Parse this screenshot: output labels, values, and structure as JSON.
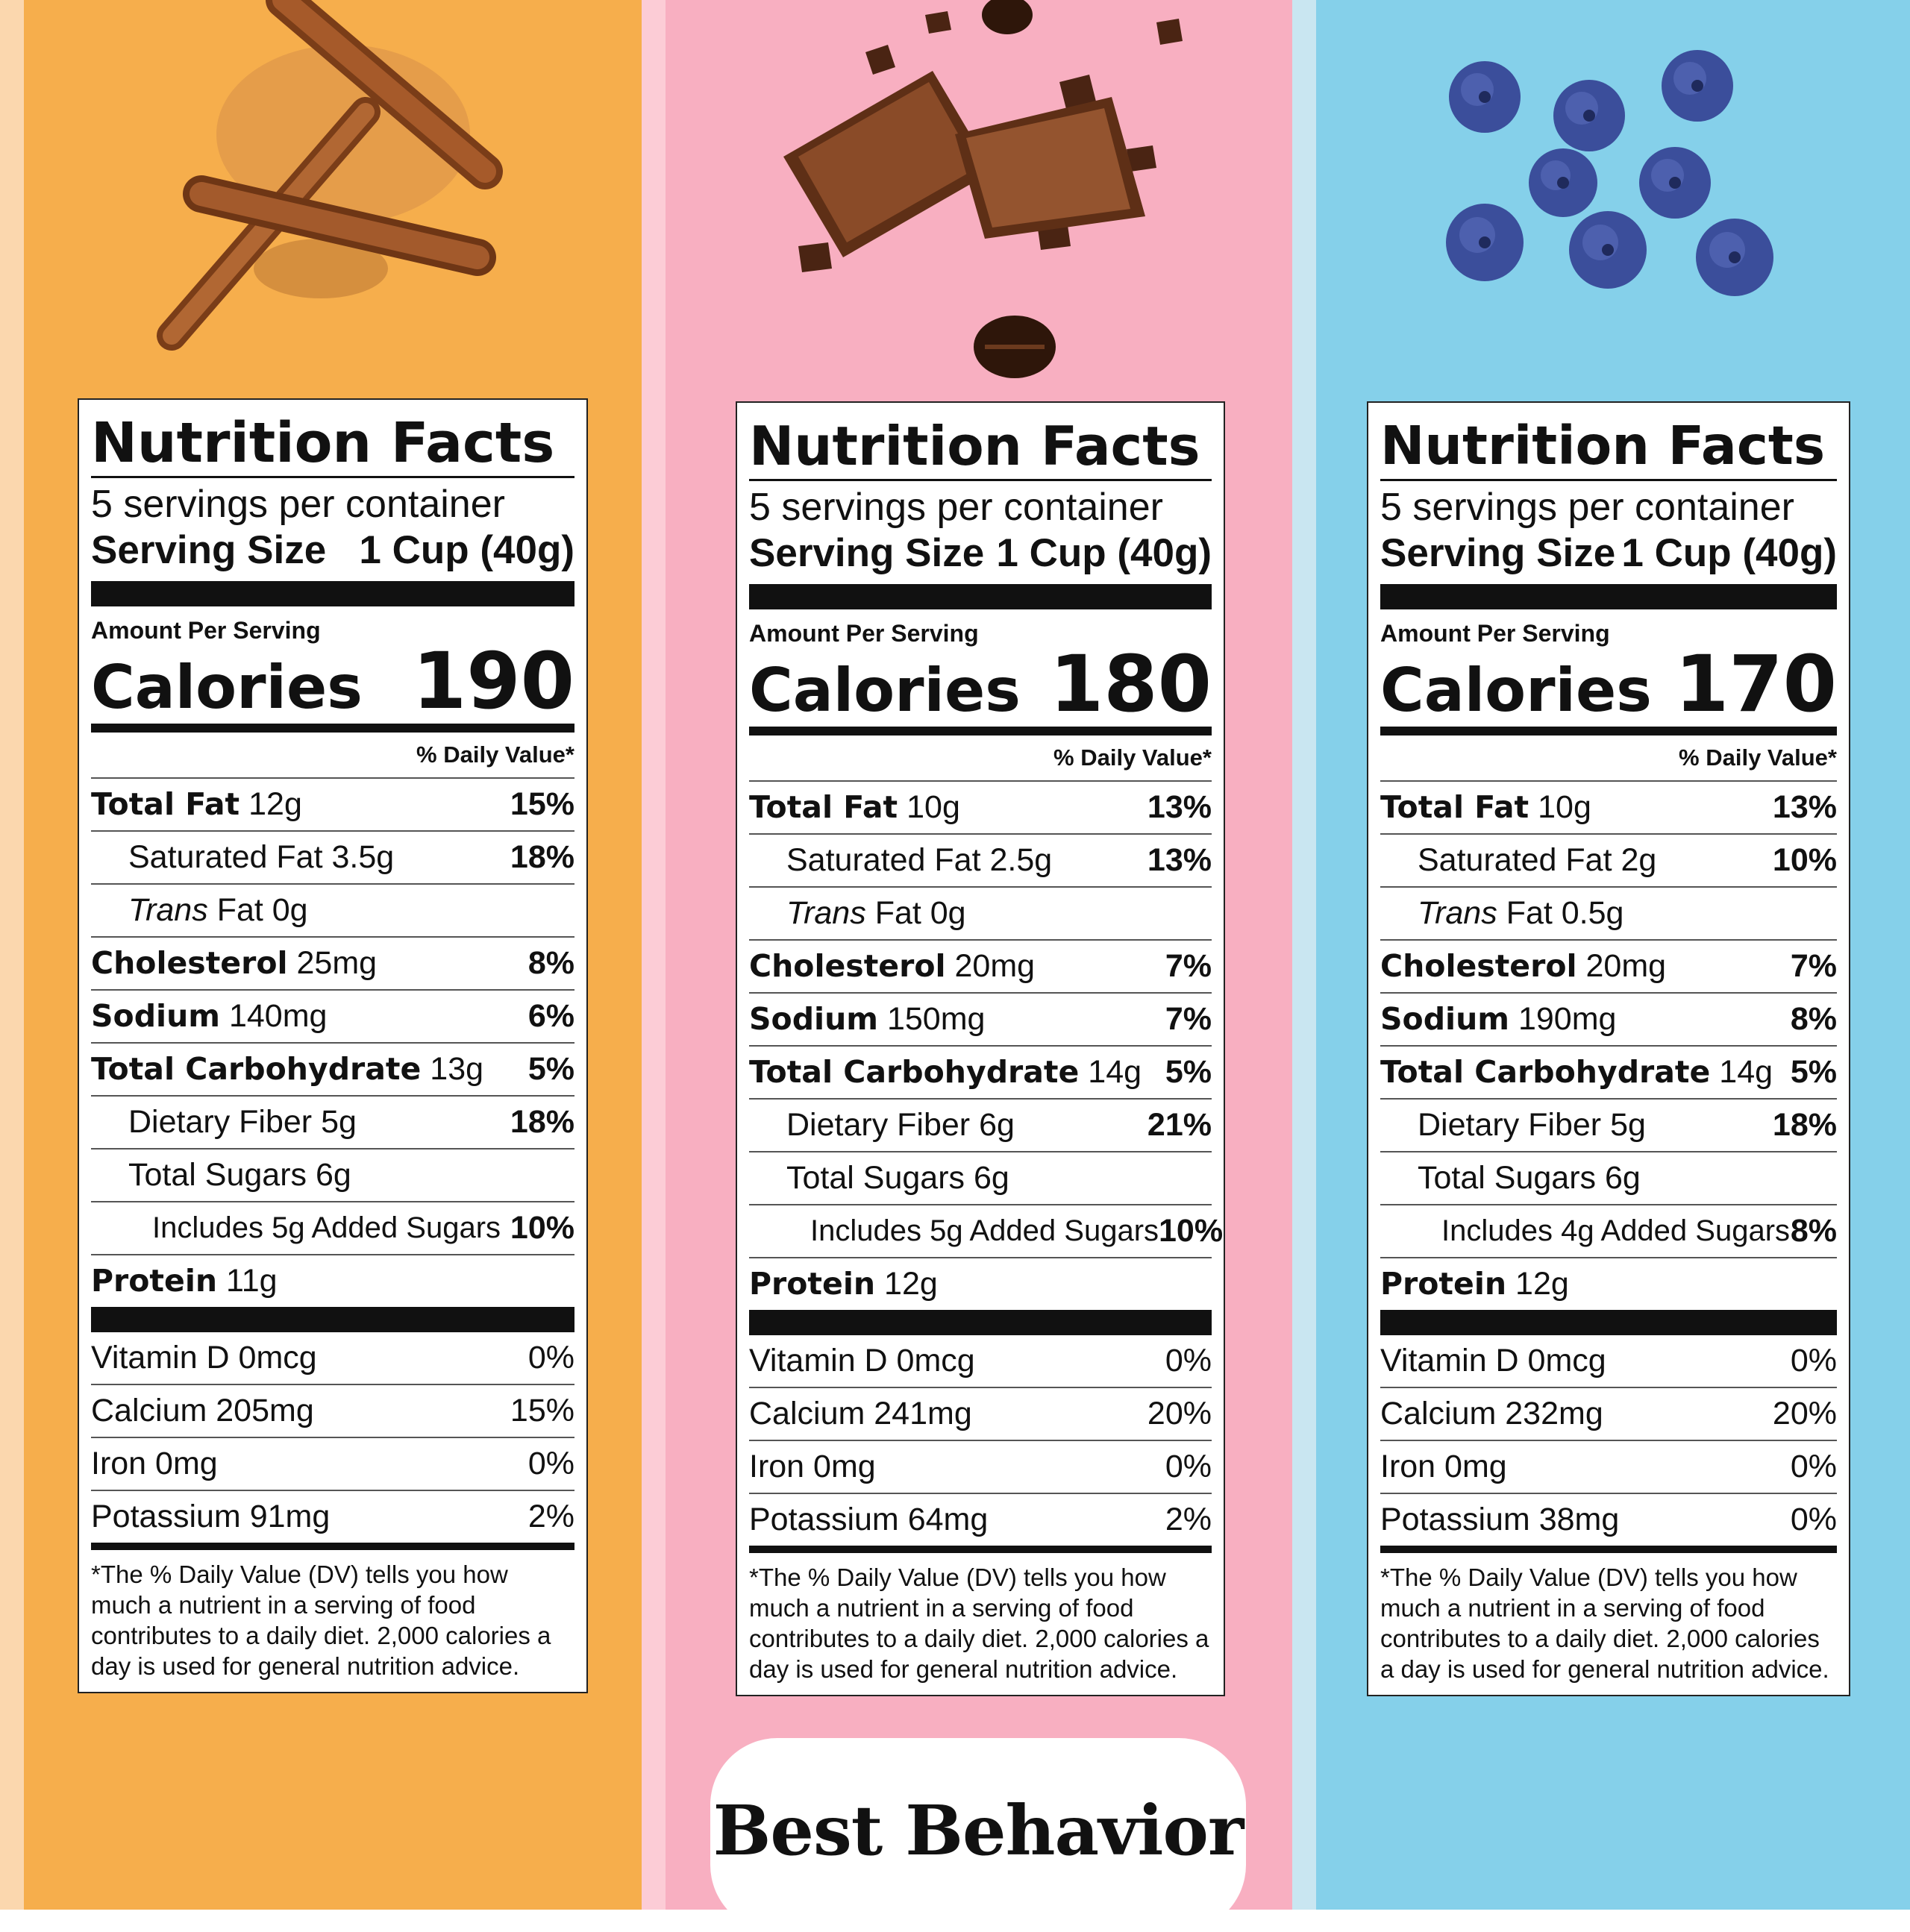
{
  "colors": {
    "orange": "#F6AE4C",
    "pink": "#F8AFC1",
    "blue": "#85D0EA",
    "peach_edge": "#FBD7AE",
    "pink_edge": "#FCCCD6",
    "blue_edge": "#C9E6F1"
  },
  "brand": {
    "name": "Best Behavior"
  },
  "labels": [
    {
      "title": "Nutrition Facts",
      "servings": "5 servings per container",
      "serving_size_label": "Serving Size",
      "serving_size_value": "1 Cup (40g)",
      "amount_per_serving": "Amount Per Serving",
      "calories_label": "Calories",
      "calories": "190",
      "dv_header": "% Daily Value*",
      "total_fat": {
        "label": "Total Fat",
        "amount": "12g",
        "pct": "15%"
      },
      "saturated_fat": {
        "label": "Saturated Fat 3.5g",
        "pct": "18%"
      },
      "trans_fat": {
        "italic": "Trans",
        "label": "Fat 0g"
      },
      "cholesterol": {
        "label": "Cholesterol",
        "amount": "25mg",
        "pct": "8%"
      },
      "sodium": {
        "label": "Sodium",
        "amount": "140mg",
        "pct": "6%"
      },
      "total_carb": {
        "label": "Total Carbohydrate",
        "amount": "13g",
        "pct": "5%"
      },
      "fiber": {
        "label": "Dietary Fiber 5g",
        "pct": "18%"
      },
      "sugars": {
        "label": "Total Sugars 6g"
      },
      "added_sugars": {
        "label": "Includes 5g Added Sugars",
        "pct": "10%"
      },
      "protein": {
        "label": "Protein",
        "amount": "11g"
      },
      "vitamins": [
        {
          "label": "Vitamin D 0mcg",
          "pct": "0%"
        },
        {
          "label": "Calcium 205mg",
          "pct": "15%"
        },
        {
          "label": "Iron 0mg",
          "pct": "0%"
        },
        {
          "label": "Potassium 91mg",
          "pct": "2%"
        }
      ],
      "footnote": "*The % Daily Value (DV) tells you how much a nutrient in a serving of food contributes to a daily diet. 2,000 calories a day is used for general nutrition advice."
    },
    {
      "title": "Nutrition Facts",
      "servings": "5 servings per container",
      "serving_size_label": "Serving Size",
      "serving_size_value": "1 Cup (40g)",
      "amount_per_serving": "Amount Per Serving",
      "calories_label": "Calories",
      "calories": "180",
      "dv_header": "% Daily Value*",
      "total_fat": {
        "label": "Total Fat",
        "amount": "10g",
        "pct": "13%"
      },
      "saturated_fat": {
        "label": "Saturated Fat 2.5g",
        "pct": "13%"
      },
      "trans_fat": {
        "italic": "Trans",
        "label": "Fat 0g"
      },
      "cholesterol": {
        "label": "Cholesterol",
        "amount": "20mg",
        "pct": "7%"
      },
      "sodium": {
        "label": "Sodium",
        "amount": "150mg",
        "pct": "7%"
      },
      "total_carb": {
        "label": "Total Carbohydrate",
        "amount": "14g",
        "pct": "5%"
      },
      "fiber": {
        "label": "Dietary Fiber 6g",
        "pct": "21%"
      },
      "sugars": {
        "label": "Total Sugars 6g"
      },
      "added_sugars": {
        "label": "Includes 5g Added Sugars",
        "pct": "10%"
      },
      "protein": {
        "label": "Protein",
        "amount": "12g"
      },
      "vitamins": [
        {
          "label": "Vitamin D 0mcg",
          "pct": "0%"
        },
        {
          "label": "Calcium 241mg",
          "pct": "20%"
        },
        {
          "label": "Iron 0mg",
          "pct": "0%"
        },
        {
          "label": "Potassium 64mg",
          "pct": "2%"
        }
      ],
      "footnote": "*The % Daily Value (DV) tells you how much a nutrient in a serving of food contributes to a daily diet. 2,000 calories a day is used for general nutrition advice."
    },
    {
      "title": "Nutrition Facts",
      "servings": "5 servings per container",
      "serving_size_label": "Serving Size",
      "serving_size_value": "1 Cup (40g)",
      "amount_per_serving": "Amount Per Serving",
      "calories_label": "Calories",
      "calories": "170",
      "dv_header": "% Daily Value*",
      "total_fat": {
        "label": "Total Fat",
        "amount": "10g",
        "pct": "13%"
      },
      "saturated_fat": {
        "label": "Saturated Fat 2g",
        "pct": "10%"
      },
      "trans_fat": {
        "italic": "Trans",
        "label": "Fat 0.5g"
      },
      "cholesterol": {
        "label": "Cholesterol",
        "amount": "20mg",
        "pct": "7%"
      },
      "sodium": {
        "label": "Sodium",
        "amount": "190mg",
        "pct": "8%"
      },
      "total_carb": {
        "label": "Total Carbohydrate",
        "amount": "14g",
        "pct": "5%"
      },
      "fiber": {
        "label": "Dietary Fiber 5g",
        "pct": "18%"
      },
      "sugars": {
        "label": "Total Sugars 6g"
      },
      "added_sugars": {
        "label": "Includes 4g Added Sugars",
        "pct": "8%"
      },
      "protein": {
        "label": "Protein",
        "amount": "12g"
      },
      "vitamins": [
        {
          "label": "Vitamin D 0mcg",
          "pct": "0%"
        },
        {
          "label": "Calcium 232mg",
          "pct": "20%"
        },
        {
          "label": "Iron 0mg",
          "pct": "0%"
        },
        {
          "label": "Potassium 38mg",
          "pct": "0%"
        }
      ],
      "footnote": "*The % Daily Value (DV) tells you how much a nutrient in a serving of food contributes to a daily diet. 2,000 calories a day is used for general nutrition advice."
    }
  ]
}
